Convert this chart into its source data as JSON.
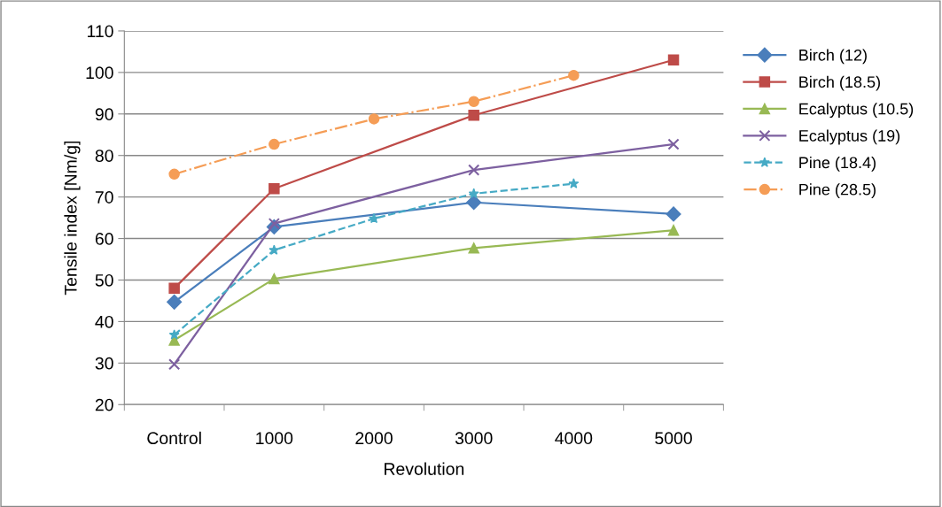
{
  "chart_data": {
    "type": "line",
    "xlabel": "Revolution",
    "ylabel": "Tensile index [Nm/g]",
    "categories": [
      "Control",
      "1000",
      "2000",
      "3000",
      "4000",
      "5000"
    ],
    "ylim": [
      20,
      110
    ],
    "yticks": [
      20,
      30,
      40,
      50,
      60,
      70,
      80,
      90,
      100,
      110
    ],
    "grid": "y",
    "legend": "right",
    "series": [
      {
        "name": "Birch (12)",
        "color": "#4a7ebb",
        "marker": "diamond",
        "line_style": "solid",
        "values": [
          44.7,
          62.8,
          null,
          68.7,
          null,
          65.9
        ]
      },
      {
        "name": "Birch (18.5)",
        "color": "#be4b48",
        "marker": "square",
        "line_style": "solid",
        "values": [
          48,
          72,
          null,
          89.7,
          null,
          103
        ]
      },
      {
        "name": "Ecalyptus (10.5)",
        "color": "#98b954",
        "marker": "triangle",
        "line_style": "solid",
        "values": [
          35.5,
          50.3,
          null,
          57.7,
          null,
          62
        ]
      },
      {
        "name": "Ecalyptus (19)",
        "color": "#7d60a0",
        "marker": "cross",
        "line_style": "solid",
        "values": [
          29.7,
          63.6,
          null,
          76.5,
          null,
          82.7
        ]
      },
      {
        "name": "Pine (18.4)",
        "color": "#46aac5",
        "marker": "star",
        "line_style": "dashed",
        "values": [
          36.8,
          57.2,
          64.8,
          70.8,
          73.2,
          null
        ]
      },
      {
        "name": "Pine (28.5)",
        "color": "#f59d56",
        "marker": "circle",
        "line_style": "dashdot",
        "values": [
          75.5,
          82.7,
          88.8,
          93,
          99.3,
          null
        ]
      }
    ]
  }
}
